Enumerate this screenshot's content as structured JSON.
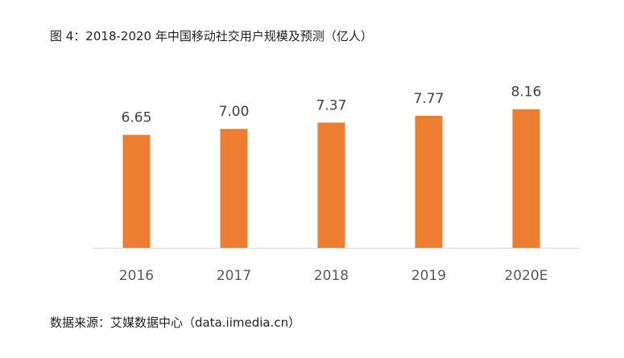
{
  "title": "图 4：2018-2020 年中国移动社交用户规模及预测（亿人）",
  "source": "数据来源：艾媒数据中心（data.iimedia.cn）",
  "chart_data": {
    "type": "bar",
    "title": "图 4：2018-2020 年中国移动社交用户规模及预测（亿人）",
    "categories": [
      "2016",
      "2017",
      "2018",
      "2019",
      "2020E"
    ],
    "values": [
      6.65,
      7.0,
      7.37,
      7.77,
      8.16
    ],
    "value_labels": [
      "6.65",
      "7.00",
      "7.37",
      "7.77",
      "8.16"
    ],
    "xlabel": "",
    "ylabel": "",
    "ylim": [
      0,
      9
    ],
    "grid": false,
    "legend": "none",
    "bar_color": "#ED7D31",
    "axis_color": "#D9D9D9",
    "label_color": "#404040"
  }
}
